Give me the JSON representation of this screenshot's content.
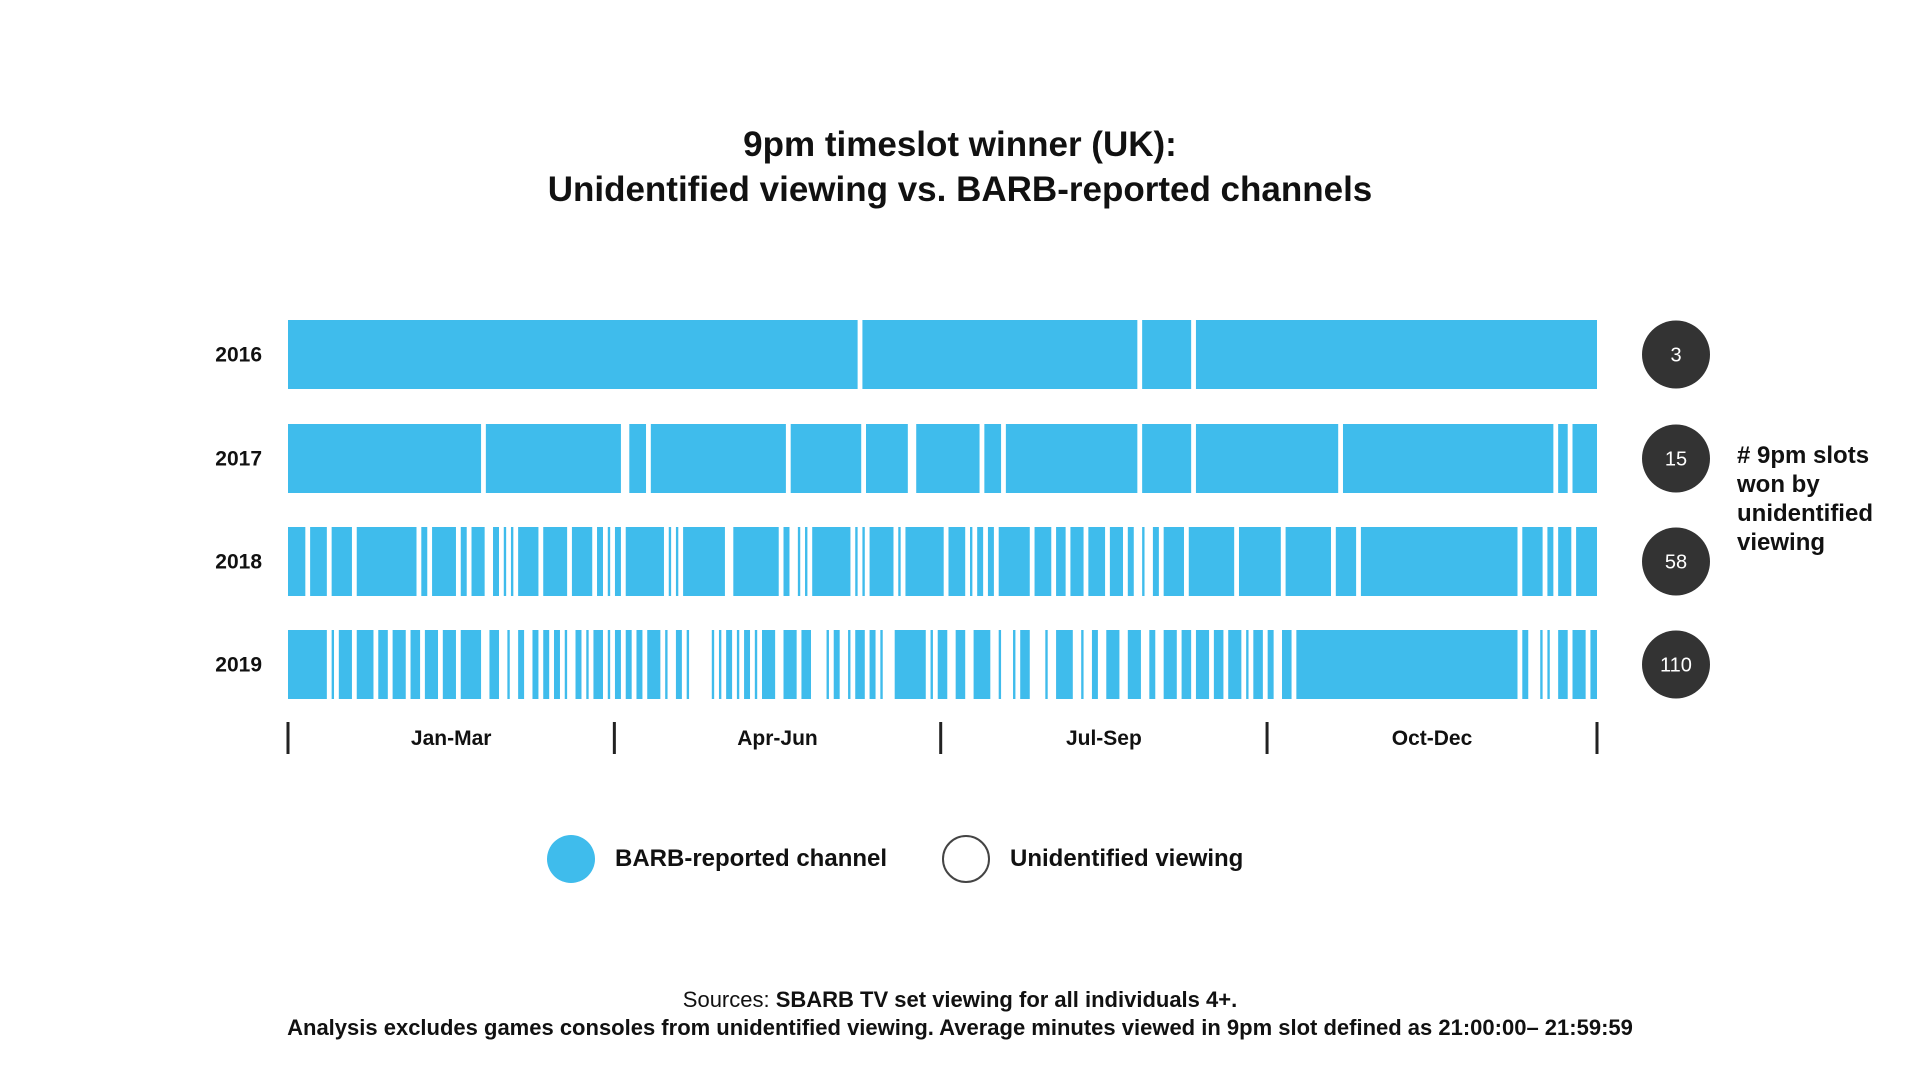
{
  "title": {
    "line1": "9pm timeslot winner (UK):",
    "line2": "Unidentified viewing vs. BARB-reported channels"
  },
  "colors": {
    "barb": "#3fbcec",
    "unidentified": "#ffffff",
    "badge": "#333333"
  },
  "side_note": "# 9pm slots won by unidentified viewing",
  "legend": {
    "barb_label": "BARB-reported channel",
    "unidentified_label": "Unidentified viewing"
  },
  "sources": {
    "prefix": "Sources: ",
    "text": "SBARB TV set viewing for all individuals 4+.",
    "note": "Analysis excludes games consoles from unidentified viewing. Average minutes viewed in 9pm slot defined as 21:00:00– 21:59:59"
  },
  "chart_data": {
    "type": "heatmap",
    "x_unit": "day of year",
    "xlim": [
      0,
      365
    ],
    "quarters": [
      "Jan-Mar",
      "Apr-Jun",
      "Jul-Sep",
      "Oct-Dec"
    ],
    "categories": [
      "Jan-Mar",
      "Apr-Jun",
      "Jul-Sep",
      "Oct-Dec"
    ],
    "legend": [
      "BARB-reported channel",
      "Unidentified viewing"
    ],
    "rows": [
      {
        "year": "2016",
        "unidentified_count": "3",
        "unidentified_days": [
          159,
          237,
          252
        ]
      },
      {
        "year": "2017",
        "unidentified_count": "15",
        "unidentified_days": [
          54,
          93,
          94,
          100,
          139,
          160,
          173,
          174,
          193,
          199,
          237,
          252,
          293,
          353,
          357
        ]
      },
      {
        "year": "2018",
        "unidentified_count": "58",
        "unidentified_days": [
          5,
          11,
          18,
          36,
          39,
          47,
          50,
          55,
          56,
          59,
          61,
          63,
          70,
          78,
          85,
          88,
          90,
          93,
          105,
          107,
          109,
          122,
          123,
          137,
          140,
          141,
          143,
          145,
          157,
          159,
          161,
          169,
          171,
          183,
          189,
          191,
          194,
          197,
          207,
          213,
          217,
          222,
          228,
          233,
          236,
          237,
          239,
          240,
          243,
          250,
          264,
          277,
          291,
          298,
          343,
          350,
          353,
          358
        ]
      },
      {
        "year": "2019",
        "unidentified_count": "110",
        "unidentified_days": [
          11,
          13,
          18,
          24,
          28,
          33,
          37,
          42,
          47,
          54,
          55,
          59,
          60,
          62,
          63,
          66,
          67,
          70,
          73,
          76,
          78,
          79,
          82,
          84,
          88,
          90,
          93,
          96,
          99,
          104,
          106,
          107,
          110,
          112,
          113,
          114,
          115,
          116,
          117,
          119,
          121,
          124,
          126,
          129,
          131,
          136,
          137,
          142,
          146,
          147,
          148,
          149,
          151,
          154,
          155,
          157,
          161,
          164,
          166,
          167,
          168,
          178,
          180,
          184,
          185,
          189,
          190,
          196,
          197,
          199,
          200,
          201,
          203,
          207,
          208,
          209,
          210,
          212,
          213,
          219,
          220,
          222,
          223,
          226,
          227,
          232,
          233,
          238,
          239,
          242,
          243,
          248,
          252,
          257,
          261,
          266,
          268,
          272,
          275,
          276,
          280,
          343,
          346,
          347,
          348,
          350,
          352,
          353,
          357,
          362
        ]
      }
    ]
  }
}
